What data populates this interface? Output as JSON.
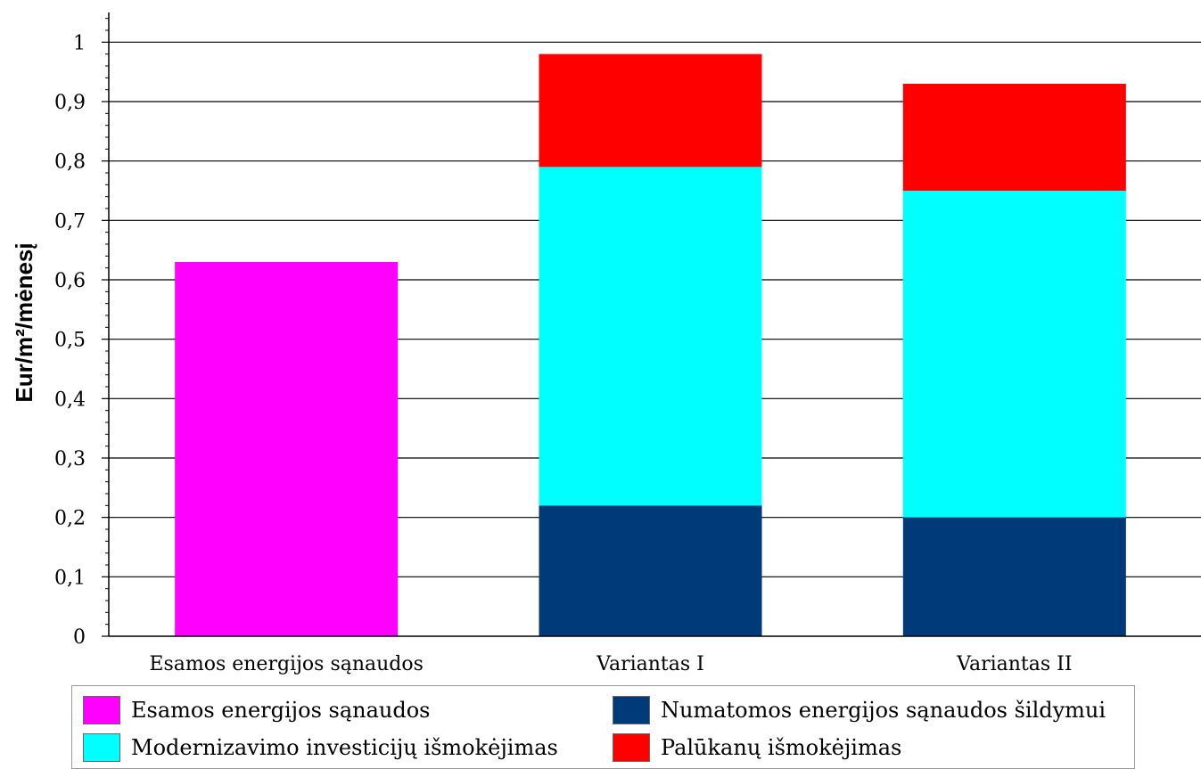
{
  "chart_data": {
    "type": "bar",
    "stacked": true,
    "ylabel": "Eur/m²/mėnesį",
    "xlabel": "",
    "ylim": [
      0,
      1.05
    ],
    "grid": true,
    "legend_position": "bottom",
    "y_ticks": [
      "0",
      "0,1",
      "0,2",
      "0,3",
      "0,4",
      "0,5",
      "0,6",
      "0,7",
      "0,8",
      "0,9",
      "1"
    ],
    "categories": [
      "Esamos energijos sąnaudos",
      "Variantas I",
      "Variantas II"
    ],
    "series": [
      {
        "name": "Esamos energijos sąnaudos",
        "color": "#ff00ff",
        "values": [
          0.63,
          0,
          0
        ]
      },
      {
        "name": "Numatomos energijos sąnaudos šildymui",
        "color": "#003a78",
        "values": [
          0,
          0.22,
          0.2
        ]
      },
      {
        "name": "Modernizavimo investicijų išmokėjimas",
        "color": "#00ffff",
        "values": [
          0,
          0.57,
          0.55
        ]
      },
      {
        "name": "Palūkanų išmokėjimas",
        "color": "#ff0000",
        "values": [
          0,
          0.19,
          0.18
        ]
      }
    ]
  }
}
